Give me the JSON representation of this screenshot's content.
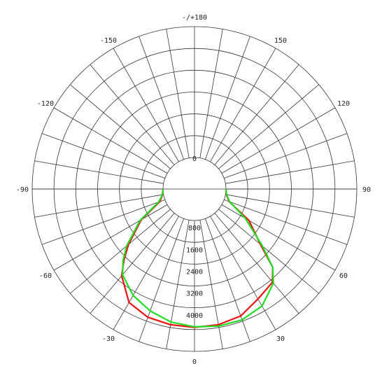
{
  "chart_data": {
    "type": "polar",
    "angle_tick_labels": [
      {
        "angle": 180,
        "text": "-/+180"
      },
      {
        "angle": 150,
        "text": "150"
      },
      {
        "angle": 120,
        "text": "120"
      },
      {
        "angle": 90,
        "text": "90"
      },
      {
        "angle": 60,
        "text": "60"
      },
      {
        "angle": 30,
        "text": "30"
      },
      {
        "angle": 0,
        "text": "0"
      },
      {
        "angle": -30,
        "text": "-30"
      },
      {
        "angle": -60,
        "text": "-60"
      },
      {
        "angle": -90,
        "text": "-90"
      },
      {
        "angle": -120,
        "text": "-120"
      },
      {
        "angle": -150,
        "text": "-150"
      }
    ],
    "radial_tick_labels": [
      {
        "value": 0,
        "text": "0"
      },
      {
        "value": 800,
        "text": "800"
      },
      {
        "value": 1600,
        "text": "1600"
      },
      {
        "value": 2400,
        "text": "2400"
      },
      {
        "value": 3200,
        "text": "3200"
      },
      {
        "value": 4000,
        "text": "4000"
      }
    ],
    "r_range": [
      0,
      4800
    ],
    "inner_ring_value": 0,
    "rings": [
      0,
      800,
      1600,
      2400,
      3200,
      4000,
      4800
    ],
    "spoke_step_deg": 10,
    "series": [
      {
        "color": "#ee1111",
        "angles": [
          -90,
          -80,
          -70,
          -60,
          -50,
          -45,
          -40,
          -30,
          -20,
          -10,
          0,
          10,
          20,
          30,
          40,
          45,
          50,
          60,
          70,
          80,
          90
        ],
        "values": [
          0,
          30,
          200,
          1100,
          2000,
          2500,
          3000,
          3650,
          3850,
          3900,
          3920,
          3900,
          3800,
          3500,
          3300,
          2900,
          2000,
          1150,
          200,
          30,
          0
        ]
      },
      {
        "color": "#22dd22",
        "angles": [
          -90,
          -80,
          -70,
          -60,
          -50,
          -45,
          -40,
          -30,
          -20,
          -10,
          0,
          10,
          20,
          30,
          40,
          45,
          50,
          60,
          70,
          80,
          90
        ],
        "values": [
          0,
          40,
          250,
          1150,
          2100,
          2550,
          2950,
          3350,
          3600,
          3800,
          3900,
          3950,
          3950,
          3800,
          3350,
          2900,
          2100,
          1000,
          220,
          40,
          0
        ]
      }
    ]
  }
}
